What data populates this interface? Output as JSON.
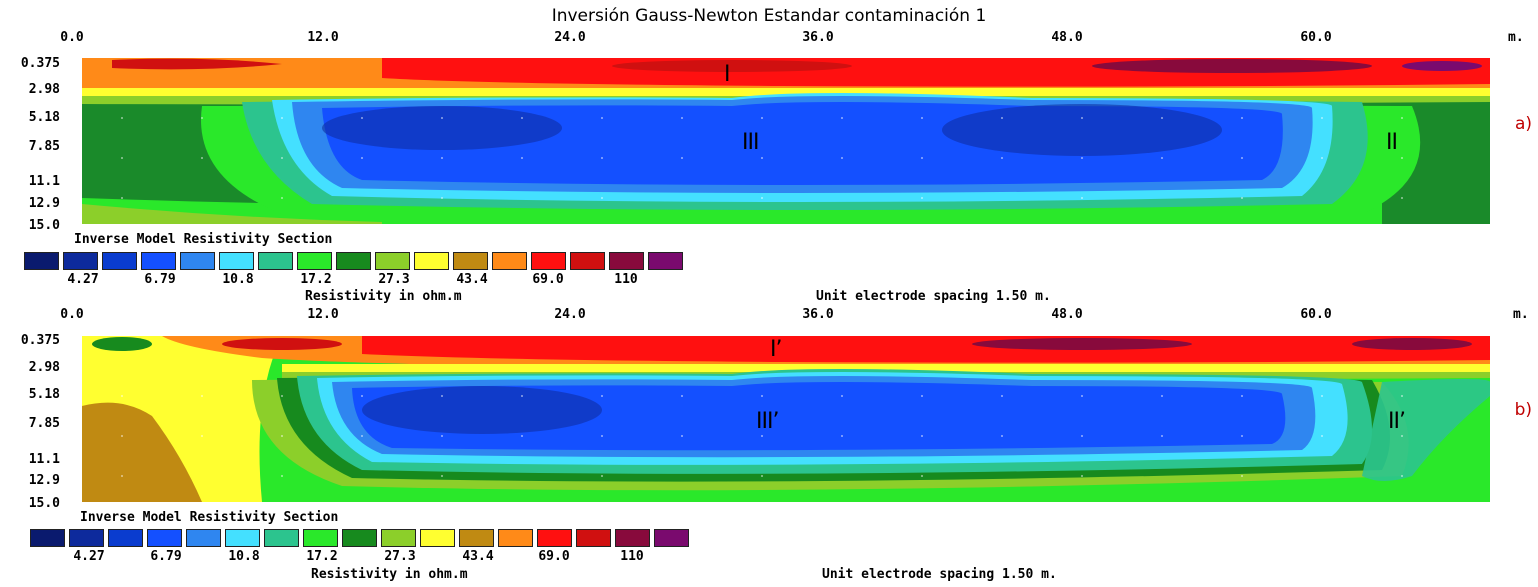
{
  "figure_title": "Inversión Gauss-Newton Estandar contaminación 1",
  "x_ticks": [
    "0.0",
    "12.0",
    "24.0",
    "36.0",
    "48.0",
    "60.0"
  ],
  "x_unit": "m.",
  "depth_ticks": [
    "0.375",
    "2.98",
    "5.18",
    "7.85",
    "11.1",
    "12.9",
    "15.0"
  ],
  "legend": {
    "title": "Inverse Model Resistivity Section",
    "colors": [
      "#0a1a6e",
      "#0d2a9c",
      "#0a3ccf",
      "#1450ff",
      "#2f86f0",
      "#44e0ff",
      "#2cc48e",
      "#2ae82a",
      "#178a1e",
      "#8ccf2a",
      "#ffff30",
      "#c08a12",
      "#ff8a18",
      "#ff1010",
      "#d01010",
      "#880a3c",
      "#7a0a6e"
    ],
    "value_labels": [
      "4.27",
      "6.79",
      "10.8",
      "17.2",
      "27.3",
      "43.4",
      "69.0",
      "110"
    ],
    "unit_label": "Resistivity in ohm.m"
  },
  "electrode_spacing": "Unit electrode spacing 1.50 m.",
  "panels": [
    {
      "label": "a)",
      "zones": {
        "I": "I",
        "II": "II",
        "III": "III"
      }
    },
    {
      "label": "b)",
      "zones": {
        "I": "I’",
        "II": "II’",
        "III": "III’"
      }
    }
  ]
}
